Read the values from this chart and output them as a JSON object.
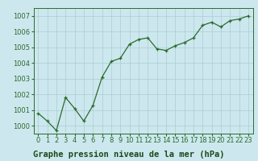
{
  "x": [
    0,
    1,
    2,
    3,
    4,
    5,
    6,
    7,
    8,
    9,
    10,
    11,
    12,
    13,
    14,
    15,
    16,
    17,
    18,
    19,
    20,
    21,
    22,
    23
  ],
  "y": [
    1000.8,
    1000.3,
    999.7,
    1001.8,
    1001.1,
    1000.3,
    1001.3,
    1003.1,
    1004.1,
    1004.3,
    1005.2,
    1005.5,
    1005.6,
    1004.9,
    1004.8,
    1005.1,
    1005.3,
    1005.6,
    1006.4,
    1006.6,
    1006.3,
    1006.7,
    1006.8,
    1007.0
  ],
  "line_color": "#2d6a2d",
  "marker_color": "#2d6a2d",
  "bg_color": "#cce8ee",
  "grid_major_color": "#aaccd4",
  "grid_minor_color": "#cce0e8",
  "xlabel": "Graphe pression niveau de la mer (hPa)",
  "ylim": [
    999.5,
    1007.5
  ],
  "yticks": [
    1000,
    1001,
    1002,
    1003,
    1004,
    1005,
    1006,
    1007
  ],
  "xticks": [
    0,
    1,
    2,
    3,
    4,
    5,
    6,
    7,
    8,
    9,
    10,
    11,
    12,
    13,
    14,
    15,
    16,
    17,
    18,
    19,
    20,
    21,
    22,
    23
  ],
  "tick_color": "#2d6a2d",
  "tick_fontsize": 6.0,
  "xlabel_fontsize": 7.5,
  "xlabel_color": "#1a4a1a"
}
